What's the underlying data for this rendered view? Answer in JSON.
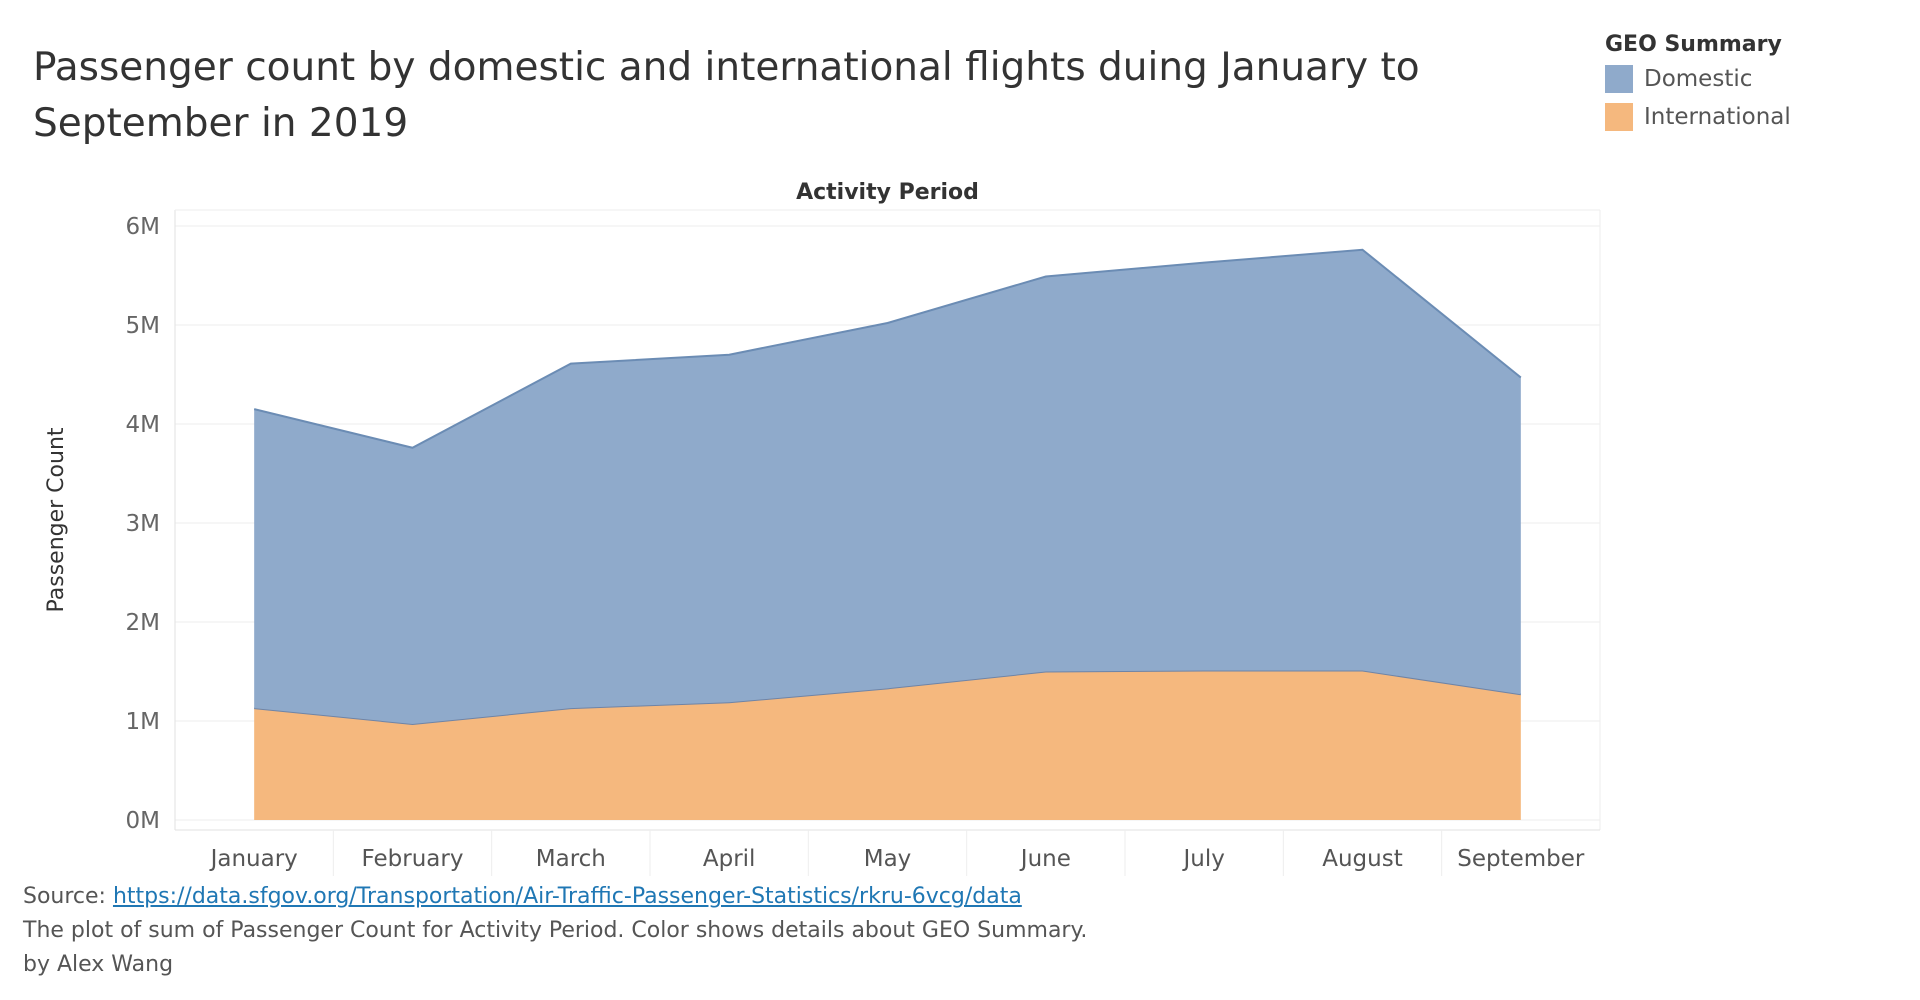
{
  "title": "Passenger count by domestic and international flights duing January to September in 2019",
  "legend": {
    "title": "GEO Summary",
    "items": [
      {
        "label": "Domestic",
        "color": "#8FAACB"
      },
      {
        "label": "International",
        "color": "#F5B87E"
      }
    ]
  },
  "footer": {
    "source_prefix": "Source: ",
    "source_link": "https://data.sfgov.org/Transportation/Air-Traffic-Passenger-Statistics/rkru-6vcg/data",
    "description": "The plot of sum of Passenger Count for Activity Period.  Color shows details about GEO Summary.",
    "author": "by Alex Wang"
  },
  "chart_data": {
    "type": "area",
    "stacked": true,
    "title": "",
    "xlabel": "Activity Period",
    "ylabel": "Passenger Count",
    "categories": [
      "January",
      "February",
      "March",
      "April",
      "May",
      "June",
      "July",
      "August",
      "September"
    ],
    "ylim": [
      0,
      6000000
    ],
    "yticks": [
      0,
      1000000,
      2000000,
      3000000,
      4000000,
      5000000,
      6000000
    ],
    "ytick_labels": [
      "0M",
      "1M",
      "2M",
      "3M",
      "4M",
      "5M",
      "6M"
    ],
    "grid": true,
    "series": [
      {
        "name": "International",
        "color": "#F5B87E",
        "values": [
          1130000,
          970000,
          1130000,
          1190000,
          1330000,
          1500000,
          1510000,
          1510000,
          1270000
        ]
      },
      {
        "name": "Domestic",
        "color": "#8FAACB",
        "values": [
          3020000,
          2790000,
          3480000,
          3510000,
          3690000,
          3990000,
          4120000,
          4250000,
          3200000
        ]
      }
    ]
  }
}
